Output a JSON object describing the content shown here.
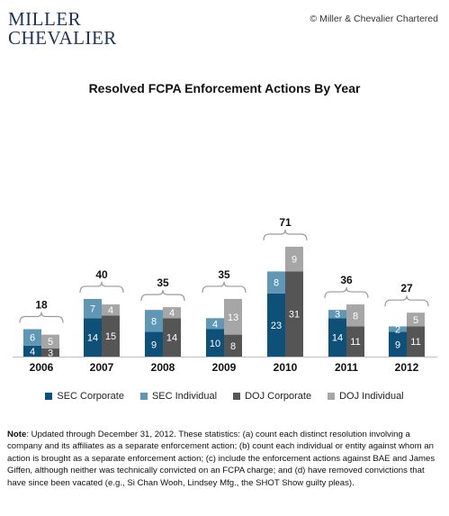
{
  "header": {
    "logo_line1": "MILLER",
    "logo_line2": "CHEVALIER",
    "copyright": "© Miller & Chevalier Chartered"
  },
  "chart_data": {
    "type": "bar",
    "title": "Resolved FCPA Enforcement Actions By Year",
    "categories": [
      "2006",
      "2007",
      "2008",
      "2009",
      "2010",
      "2011",
      "2012"
    ],
    "stacks": [
      {
        "name": "SEC",
        "series": [
          {
            "name": "SEC Corporate",
            "color": "#0f5078",
            "values": [
              4,
              14,
              9,
              10,
              23,
              14,
              9
            ]
          },
          {
            "name": "SEC Individual",
            "color": "#5f97b5",
            "values": [
              6,
              7,
              8,
              4,
              8,
              3,
              2
            ]
          }
        ]
      },
      {
        "name": "DOJ",
        "series": [
          {
            "name": "DOJ Corporate",
            "color": "#555555",
            "values": [
              3,
              15,
              14,
              8,
              31,
              11,
              11
            ]
          },
          {
            "name": "DOJ Individual",
            "color": "#a6a6a6",
            "values": [
              5,
              4,
              4,
              13,
              9,
              8,
              5
            ]
          }
        ]
      }
    ],
    "totals": [
      18,
      40,
      35,
      35,
      71,
      36,
      27
    ],
    "legend_position": "bottom",
    "grid": false
  },
  "note": {
    "label": "Note",
    "text": ": Updated through December 31, 2012. These statistics: (a) count each distinct resolution involving a company and its affiliates  as a separate enforcement action; (b) count each individual or entity against whom an action is brought as a separate enforcement action; (c) include the enforcement actions against BAE and James Giffen, although neither was technically convicted on an FCPA charge; and (d) have removed convictions that have since been vacated (e.g., Si Chan Wooh, Lindsey  Mfg., the  SHOT Show guilty pleas)."
  }
}
